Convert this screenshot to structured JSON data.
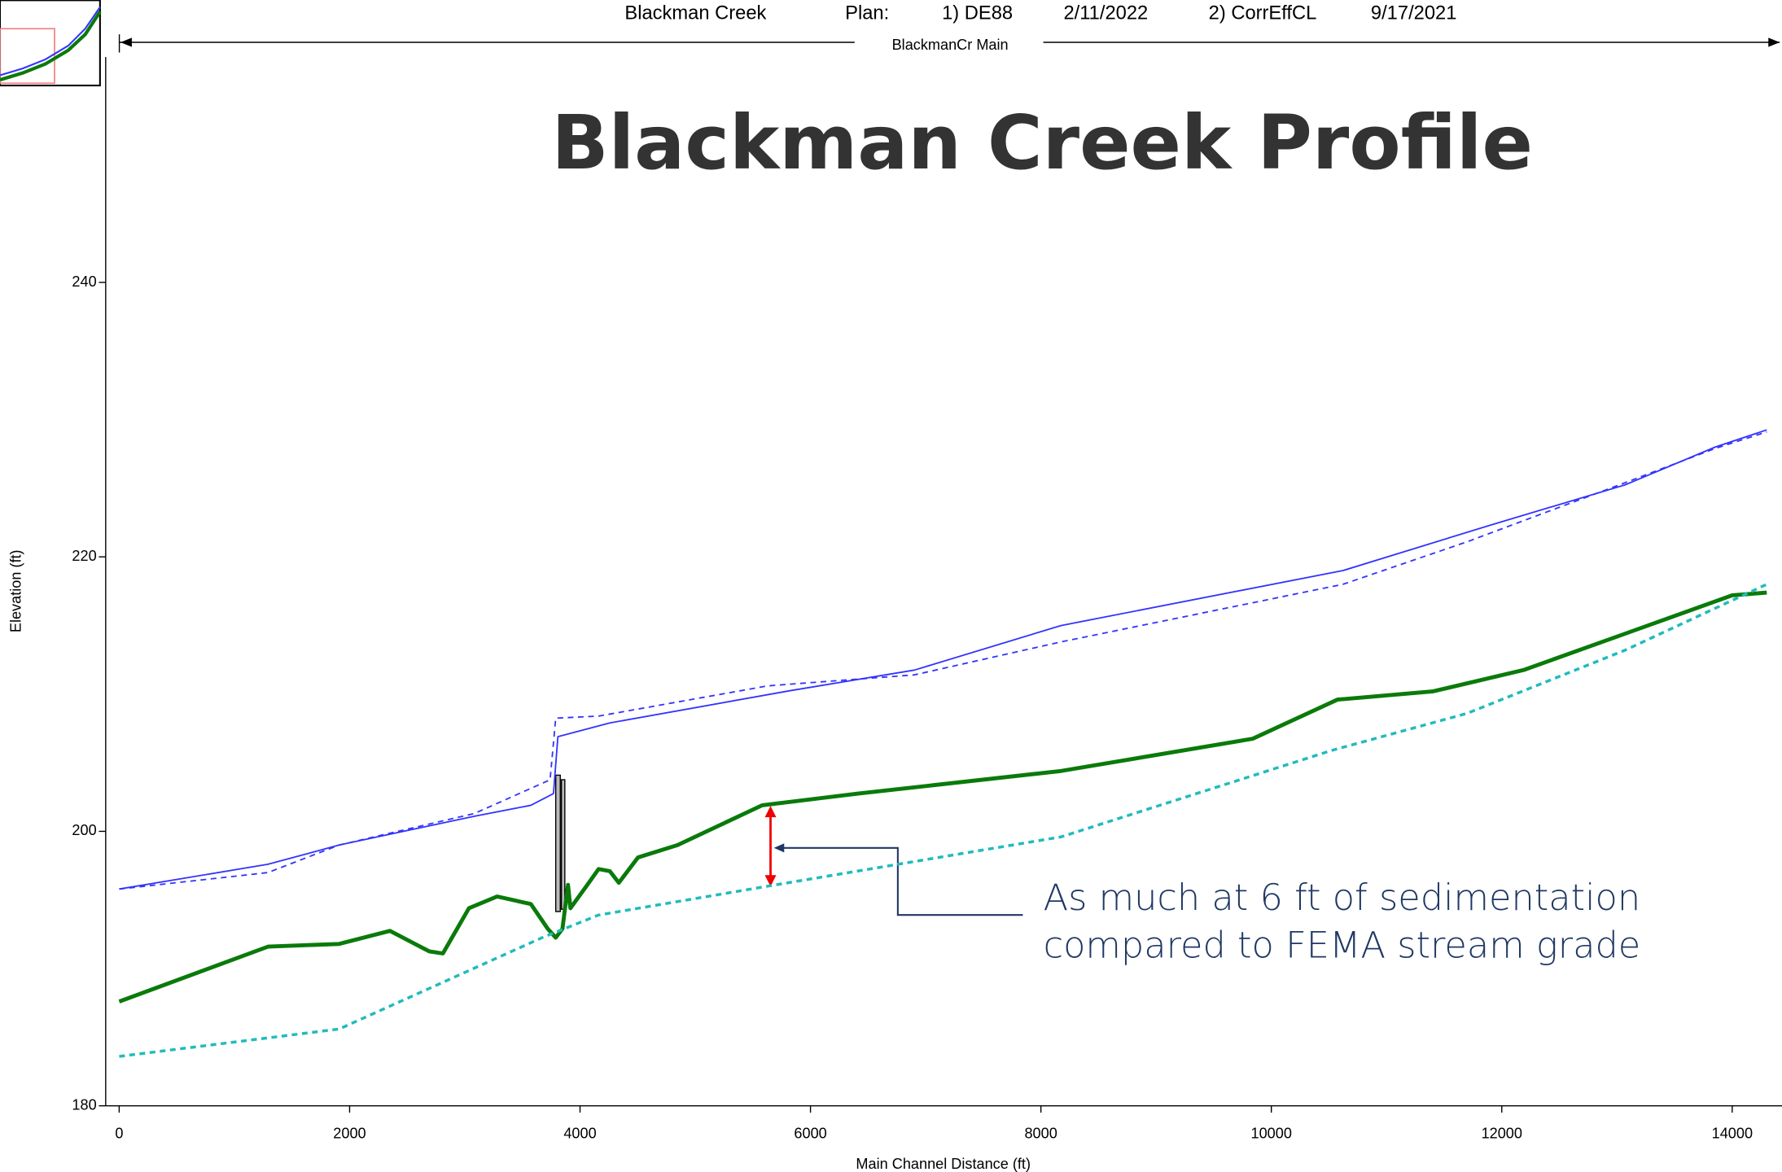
{
  "header": {
    "river": "Blackman Creek",
    "plan_label": "Plan:",
    "plan1": "1) DE88",
    "plan1_date": "2/11/2022",
    "plan2": "2) CorrEffCL",
    "plan2_date": "9/17/2021",
    "reach": "BlackmanCr Main"
  },
  "chart_data": {
    "type": "line",
    "title": "Blackman Creek Profile",
    "xlabel": "Main Channel Distance (ft)",
    "ylabel": "Elevation (ft)",
    "annotation": [
      "As much at 6 ft of sedimentation",
      "compared to FEMA stream grade"
    ],
    "xlim": [
      -117,
      14300
    ],
    "ylim": [
      180,
      256.5
    ],
    "xticks": [
      0,
      2000,
      4000,
      6000,
      8000,
      10000,
      12000,
      14000
    ],
    "yticks": [
      180,
      200,
      220,
      240
    ],
    "series": [
      {
        "color": "#3333ff",
        "dash": false,
        "width": 1.3,
        "x": [
          0,
          1292,
          1909,
          3084,
          3573,
          3769,
          3808,
          4259,
          5825,
          6902,
          8175,
          10622,
          11895,
          13070,
          13853,
          14300
        ],
        "values": [
          195.8,
          197.6,
          199.0,
          201.1,
          201.9,
          202.75,
          206.9,
          207.9,
          210.25,
          211.75,
          215.0,
          219.0,
          222.3,
          225.25,
          228.0,
          229.25
        ]
      },
      {
        "color": "#3333ff",
        "dash": true,
        "width": 1.3,
        "x": [
          0,
          1292,
          1909,
          3084,
          3740,
          3789,
          4161,
          5629,
          6902,
          8175,
          10622,
          11699,
          13070,
          13853,
          14300
        ],
        "values": [
          195.8,
          197.0,
          199.0,
          201.3,
          203.75,
          208.25,
          208.4,
          210.6,
          211.4,
          213.8,
          218.0,
          221.1,
          225.4,
          227.9,
          229.1
        ]
      },
      {
        "color": "#0a7a0a",
        "dash": false,
        "width": 3.5,
        "x": [
          0,
          1292,
          1909,
          2350,
          2692,
          2810,
          3035,
          3280,
          3573,
          3720,
          3789,
          3847,
          3896,
          3916,
          4063,
          4161,
          4259,
          4337,
          4503,
          4846,
          5580,
          6412,
          8175,
          9839,
          10573,
          11405,
          12188,
          13070,
          14000,
          14300
        ],
        "values": [
          187.6,
          191.6,
          191.8,
          192.75,
          191.25,
          191.1,
          194.4,
          195.25,
          194.7,
          192.9,
          192.25,
          192.9,
          196.1,
          194.4,
          196.1,
          197.25,
          197.1,
          196.25,
          198.1,
          199.0,
          201.9,
          202.75,
          204.4,
          206.75,
          209.6,
          210.2,
          211.75,
          214.4,
          217.2,
          217.4
        ]
      },
      {
        "color": "#22bbbb",
        "dash": true,
        "width": 2.5,
        "x": [
          0,
          1909,
          3671,
          4161,
          5629,
          8175,
          10524,
          11699,
          13070,
          14300
        ],
        "values": [
          183.6,
          185.6,
          192.25,
          193.9,
          196.0,
          199.6,
          205.9,
          208.6,
          213.2,
          218.0
        ]
      }
    ]
  }
}
